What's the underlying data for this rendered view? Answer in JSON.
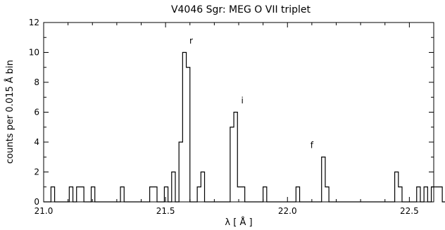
{
  "chart_data": {
    "type": "line",
    "title": "V4046 Sgr: MEG O VII triplet",
    "xlabel": "λ [ Å ]",
    "ylabel": "counts per 0.015 Å bin",
    "xlim": [
      21.0,
      22.6
    ],
    "ylim": [
      0,
      12
    ],
    "x_ticks": [
      21.0,
      21.5,
      22.0,
      22.5
    ],
    "x_tick_labels": [
      "21.0",
      "21.5",
      "22.0",
      "22.5"
    ],
    "y_ticks": [
      0,
      2,
      4,
      6,
      8,
      10,
      12
    ],
    "y_tick_labels": [
      "0",
      "2",
      "4",
      "6",
      "8",
      "10",
      "12"
    ],
    "grid": false,
    "bin_width": 0.015,
    "series": [
      {
        "bin_start": 21.0,
        "values": [
          0,
          0,
          1,
          0,
          0,
          0,
          0,
          1,
          0,
          1,
          1,
          0,
          0,
          1,
          0,
          0,
          0,
          0,
          0,
          0,
          0,
          1,
          0,
          0,
          0,
          0,
          0,
          0,
          0,
          1,
          1,
          0,
          0,
          1,
          0,
          2,
          0,
          4,
          10,
          9,
          0,
          0,
          1,
          2,
          0,
          0,
          0,
          0,
          0,
          0,
          0,
          5,
          6,
          1,
          1,
          0,
          0,
          0,
          0,
          0,
          1,
          0,
          0,
          0,
          0,
          0,
          0,
          0,
          0,
          1,
          0,
          0,
          0,
          0,
          0,
          0,
          3,
          1,
          0,
          0,
          0,
          0,
          0,
          0,
          0,
          0,
          0,
          0,
          0,
          0,
          0,
          0,
          0,
          0,
          0,
          0,
          2,
          1,
          0,
          0,
          0,
          0,
          1,
          0,
          1,
          0,
          1,
          1,
          1,
          0,
          2,
          1,
          0
        ]
      }
    ],
    "annotations": [
      {
        "text": "r",
        "x": 21.605,
        "y": 10.6
      },
      {
        "text": "i",
        "x": 21.815,
        "y": 6.6
      },
      {
        "text": "f",
        "x": 22.1,
        "y": 3.6
      }
    ]
  }
}
